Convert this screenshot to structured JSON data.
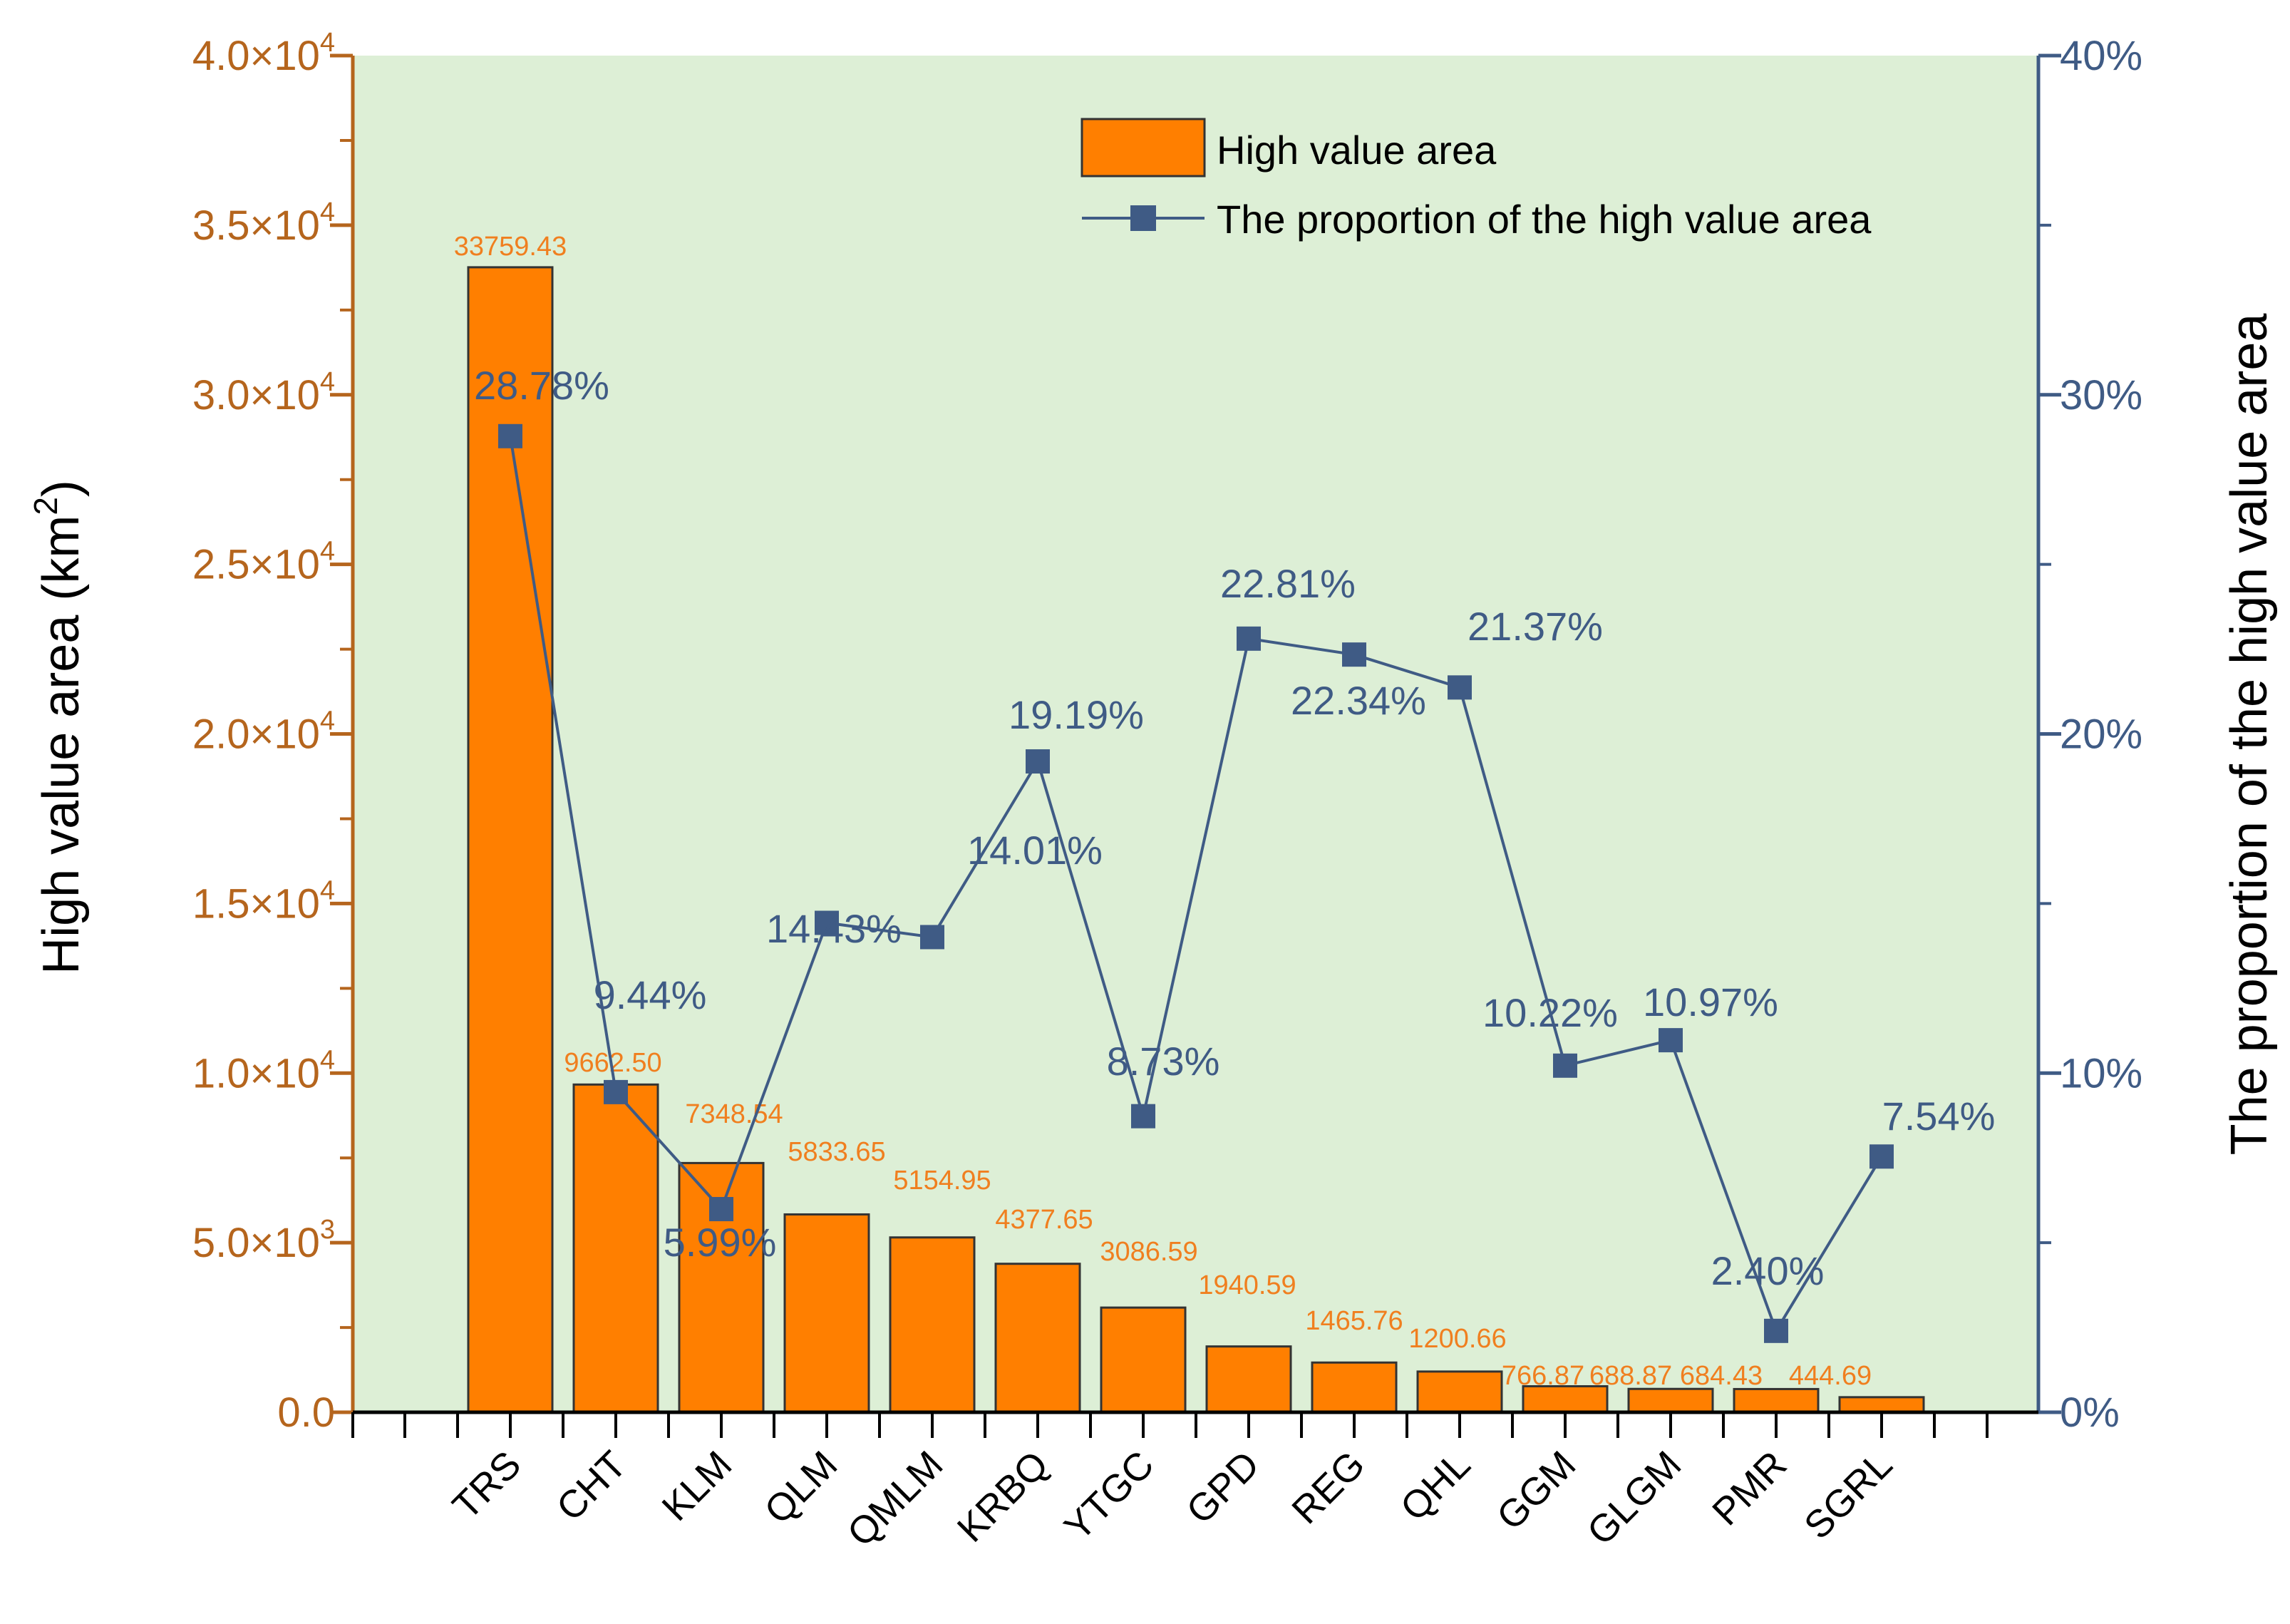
{
  "chart_data": {
    "type": "bar",
    "categories": [
      "TRS",
      "CHT",
      "KLM",
      "QLM",
      "QMLM",
      "KRBQ",
      "YTGC",
      "GPD",
      "REG",
      "QHL",
      "GGM",
      "GLGM",
      "PMR",
      "SGRL"
    ],
    "series": [
      {
        "name": "High value area",
        "type": "bar",
        "axis": "left",
        "values": [
          33759.43,
          9662.5,
          7348.54,
          5833.65,
          5154.95,
          4377.65,
          3086.59,
          1940.59,
          1465.76,
          1200.66,
          766.87,
          688.87,
          684.43,
          444.69
        ],
        "labels": [
          "33759.43",
          "9662.50",
          "7348.54",
          "5833.65",
          "5154.95",
          "4377.65",
          "3086.59",
          "1940.59",
          "1465.76",
          "1200.66",
          "766.87",
          "688.87",
          "684.43",
          "444.69"
        ]
      },
      {
        "name": "The proportion of the high value area",
        "type": "line",
        "axis": "right",
        "values": [
          28.78,
          9.44,
          5.99,
          14.43,
          14.01,
          19.19,
          8.73,
          22.81,
          22.34,
          21.37,
          10.22,
          10.97,
          2.4,
          7.54
        ],
        "labels": [
          "28.78%",
          "9.44%",
          "5.99%",
          "14.43%",
          "14.01%",
          "19.19%",
          "8.73%",
          "22.81%",
          "22.34%",
          "21.37%",
          "10.22%",
          "10.97%",
          "2.40%",
          "7.54%"
        ]
      }
    ],
    "ylabel": "High value area (km²)",
    "ylabel_main": "High value area (km",
    "ylabel_sup": "2",
    "ylabel_end": ")",
    "y2label": "The proportion of the high value area",
    "ylim": [
      0,
      40000
    ],
    "y2lim": [
      0,
      40
    ],
    "yticks": [
      {
        "mant": "0.0",
        "exp": ""
      },
      {
        "mant": "5.0×10",
        "exp": "3"
      },
      {
        "mant": "1.0×10",
        "exp": "4"
      },
      {
        "mant": "1.5×10",
        "exp": "4"
      },
      {
        "mant": "2.0×10",
        "exp": "4"
      },
      {
        "mant": "2.5×10",
        "exp": "4"
      },
      {
        "mant": "3.0×10",
        "exp": "4"
      },
      {
        "mant": "3.5×10",
        "exp": "4"
      },
      {
        "mant": "4.0×10",
        "exp": "4"
      }
    ],
    "y2ticks": [
      "0%",
      "10%",
      "20%",
      "30%",
      "40%"
    ],
    "legend": {
      "position": "top-right",
      "entries": [
        "High value area",
        "The proportion of the high value area"
      ]
    },
    "colors": {
      "bar": "#ff7f00",
      "bar_label": "#f07f1f",
      "line": "#3f5b85",
      "left_axis": "#b5651d",
      "right_axis": "#3f5b85",
      "plot_bg": "#ddefd6"
    },
    "grid": false
  }
}
